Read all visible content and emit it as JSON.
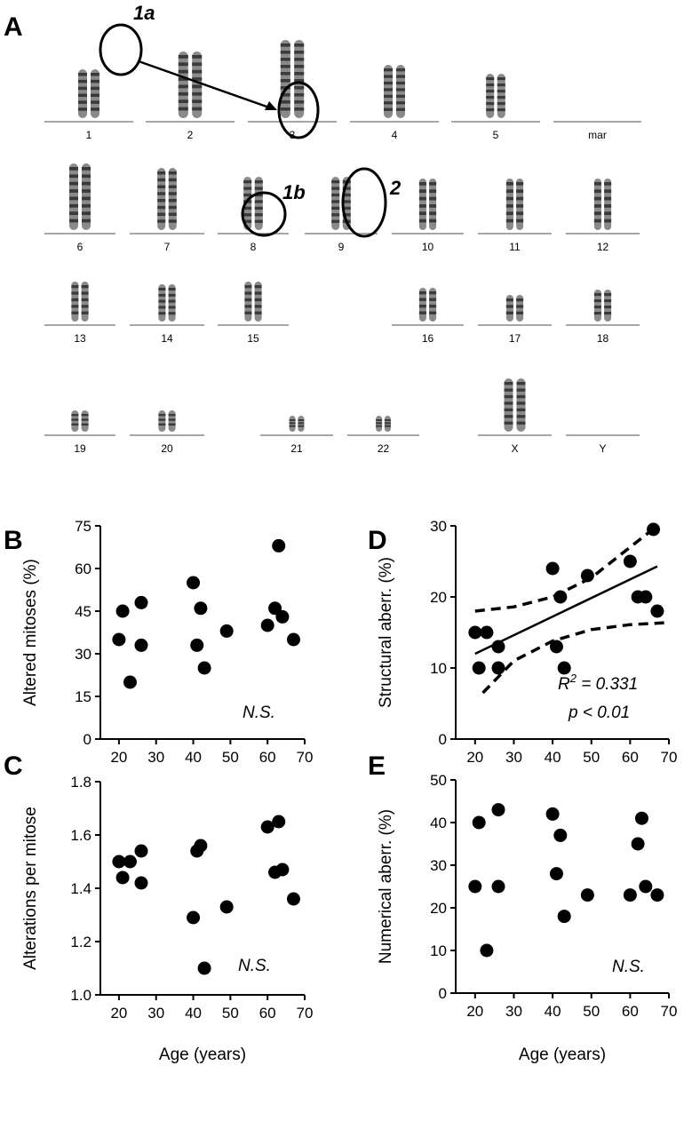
{
  "panel_a": {
    "label": "A",
    "annotations": [
      "1a",
      "1b",
      "2"
    ],
    "chromosome_labels": [
      "1",
      "2",
      "3",
      "4",
      "5",
      "mar",
      "6",
      "7",
      "8",
      "9",
      "10",
      "11",
      "12",
      "13",
      "14",
      "15",
      "16",
      "17",
      "18",
      "19",
      "20",
      "21",
      "22",
      "X",
      "Y"
    ]
  },
  "chart_data": [
    {
      "panel": "B",
      "type": "scatter",
      "title": "",
      "xlabel": "",
      "ylabel": "Altered mitoses (%)",
      "xlim": [
        15,
        70
      ],
      "ylim": [
        0,
        75
      ],
      "xticks": [
        "20",
        "30",
        "40",
        "50",
        "60",
        "70"
      ],
      "yticks": [
        "0",
        "15",
        "30",
        "45",
        "60",
        "75"
      ],
      "x": [
        20,
        21,
        23,
        26,
        26,
        40,
        41,
        42,
        43,
        49,
        60,
        62,
        63,
        64,
        67
      ],
      "y": [
        35,
        45,
        20,
        48,
        33,
        55,
        33,
        46,
        25,
        38,
        40,
        46,
        68,
        43,
        35
      ],
      "note": "N.S."
    },
    {
      "panel": "C",
      "type": "scatter",
      "title": "",
      "xlabel": "Age (years)",
      "ylabel": "Alterations  per mitose",
      "xlim": [
        15,
        70
      ],
      "ylim": [
        1.0,
        1.8
      ],
      "xticks": [
        "20",
        "30",
        "40",
        "50",
        "60",
        "70"
      ],
      "yticks": [
        "1.0",
        "1.2",
        "1.4",
        "1.6",
        "1.8"
      ],
      "x": [
        20,
        21,
        23,
        26,
        26,
        40,
        41,
        42,
        43,
        49,
        60,
        62,
        63,
        64,
        67
      ],
      "y": [
        1.5,
        1.44,
        1.5,
        1.54,
        1.42,
        1.29,
        1.54,
        1.56,
        1.1,
        1.33,
        1.63,
        1.46,
        1.65,
        1.47,
        1.36
      ],
      "note": "N.S."
    },
    {
      "panel": "D",
      "type": "scatter",
      "title": "",
      "xlabel": "",
      "ylabel": "Structural aberr. (%)",
      "xlim": [
        15,
        70
      ],
      "ylim": [
        0,
        30
      ],
      "xticks": [
        "20",
        "30",
        "40",
        "50",
        "60",
        "70"
      ],
      "yticks": [
        "0",
        "10",
        "20",
        "30"
      ],
      "x": [
        20,
        21,
        23,
        26,
        26,
        40,
        41,
        42,
        43,
        49,
        60,
        62,
        64,
        66,
        67
      ],
      "y": [
        15,
        10,
        15,
        13,
        10,
        24,
        13,
        20,
        10,
        23,
        25,
        20,
        20,
        29.5,
        18
      ],
      "regression": {
        "x": [
          20,
          67
        ],
        "y": [
          12,
          24.3
        ]
      },
      "ci_upper": {
        "x": [
          20,
          30,
          40,
          50,
          60,
          67
        ],
        "y": [
          18,
          18.6,
          20,
          22.7,
          27,
          30
        ]
      },
      "ci_lower": {
        "x": [
          22,
          30,
          40,
          50,
          60,
          70
        ],
        "y": [
          6.5,
          11,
          13.8,
          15.4,
          16.1,
          16.4
        ]
      },
      "stats": {
        "r2_label": "R",
        "r2_exp": "2",
        "r2_value": " = 0.331",
        "p_label": "p <  0.01"
      }
    },
    {
      "panel": "E",
      "type": "scatter",
      "title": "",
      "xlabel": "Age (years)",
      "ylabel": "Numerical aberr. (%)",
      "xlim": [
        15,
        70
      ],
      "ylim": [
        0,
        50
      ],
      "xticks": [
        "20",
        "30",
        "40",
        "50",
        "60",
        "70"
      ],
      "yticks": [
        "0",
        "10",
        "20",
        "30",
        "40",
        "50"
      ],
      "x": [
        20,
        21,
        23,
        26,
        26,
        40,
        41,
        42,
        43,
        49,
        60,
        62,
        63,
        64,
        67
      ],
      "y": [
        25,
        40,
        10,
        43,
        25,
        42,
        28,
        37,
        18,
        23,
        23,
        35,
        41,
        25,
        23
      ],
      "note": "N.S."
    }
  ]
}
